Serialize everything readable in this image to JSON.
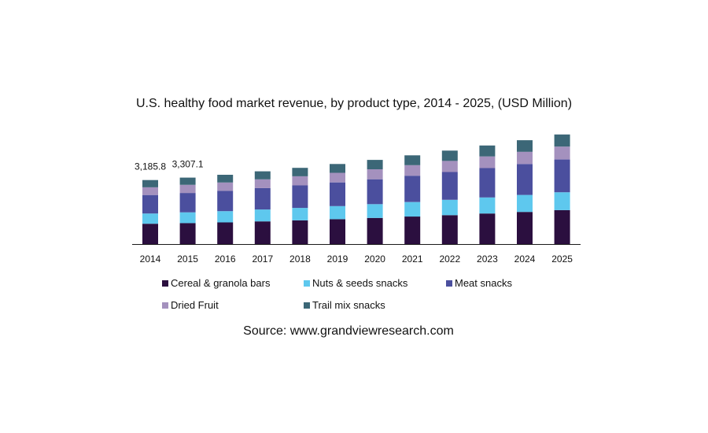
{
  "chart_data": {
    "type": "bar",
    "stacked": true,
    "title": "U.S. healthy food market revenue, by product type, 2014 - 2025, (USD Million)",
    "xlabel": "",
    "ylabel": "",
    "categories": [
      "2014",
      "2015",
      "2016",
      "2017",
      "2018",
      "2019",
      "2020",
      "2021",
      "2022",
      "2023",
      "2024",
      "2025"
    ],
    "series": [
      {
        "name": "Cereal & granola bars",
        "color": "#2b0f3f",
        "values": [
          1010,
          1045,
          1080,
          1130,
          1180,
          1240,
          1300,
          1370,
          1440,
          1520,
          1600,
          1690
        ]
      },
      {
        "name": "Nuts & seeds snacks",
        "color": "#5ec8ee",
        "values": [
          510,
          535,
          560,
          590,
          620,
          650,
          685,
          720,
          760,
          800,
          845,
          890
        ]
      },
      {
        "name": "Meat snacks",
        "color": "#4b4f9e",
        "values": [
          920,
          965,
          1010,
          1065,
          1120,
          1180,
          1240,
          1310,
          1385,
          1460,
          1540,
          1630
        ]
      },
      {
        "name": "Dried Fruit",
        "color": "#a491be",
        "values": [
          385,
          400,
          415,
          435,
          455,
          475,
          500,
          525,
          550,
          580,
          610,
          640
        ]
      },
      {
        "name": "Trail mix snacks",
        "color": "#3c6777",
        "values": [
          360.8,
          362.1,
          385,
          400,
          420,
          440,
          465,
          490,
          515,
          545,
          575,
          605
        ]
      }
    ],
    "data_labels": [
      {
        "category": "2014",
        "text": "3,185.8",
        "total": 3185.8
      },
      {
        "category": "2015",
        "text": "3,307.1",
        "total": 3307.1
      }
    ],
    "ylim": [
      0,
      5800
    ],
    "grid": false,
    "legend_position": "bottom",
    "source": "Source: www.grandviewresearch.com"
  }
}
